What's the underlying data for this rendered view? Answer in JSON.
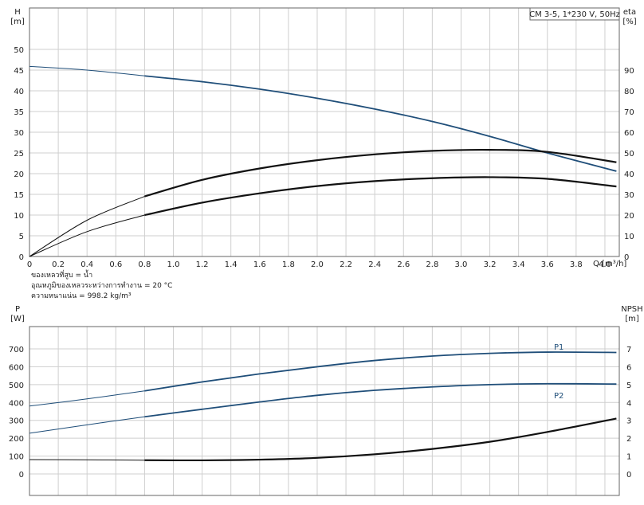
{
  "chart_data": [
    {
      "type": "line",
      "title": "CM 3-5, 1*230 V, 50Hz",
      "xlabel": "Q [m³/h]",
      "x_unit_label": "Q [m³/h]",
      "ylabel_left": "H",
      "ylabel_left_unit": "[m]",
      "ylabel_right": "eta",
      "ylabel_right_unit": "[%]",
      "xlim": [
        0,
        4.1
      ],
      "ylim_left": [
        0,
        50
      ],
      "ylim_right": [
        0,
        100
      ],
      "x_ticks": [
        "0",
        "0.2",
        "0.4",
        "0.6",
        "0.8",
        "1.0",
        "1.2",
        "1.4",
        "1.6",
        "1.8",
        "2.0",
        "2.2",
        "2.4",
        "2.6",
        "2.8",
        "3.0",
        "3.2",
        "3.4",
        "3.6",
        "3.8",
        "4.0"
      ],
      "y_left_ticks": [
        "0",
        "5",
        "10",
        "15",
        "20",
        "25",
        "30",
        "35",
        "40",
        "45",
        "50"
      ],
      "y_right_ticks": [
        "0",
        "10",
        "20",
        "30",
        "40",
        "50",
        "60",
        "70",
        "80",
        "90"
      ],
      "grid": true,
      "series": [
        {
          "axis": "left",
          "color": "#1f4e79",
          "points": [
            [
              0,
              45.9
            ],
            [
              0.4,
              45.0
            ],
            [
              0.8,
              43.6
            ],
            [
              1.2,
              42.2
            ],
            [
              1.6,
              40.4
            ],
            [
              2.0,
              38.2
            ],
            [
              2.4,
              35.6
            ],
            [
              2.8,
              32.6
            ],
            [
              3.2,
              29.0
            ],
            [
              3.6,
              25.0
            ],
            [
              4.08,
              20.6
            ]
          ]
        },
        {
          "axis": "right",
          "color": "#111111",
          "points": [
            [
              0,
              0
            ],
            [
              0.4,
              17.5
            ],
            [
              0.8,
              29.0
            ],
            [
              1.2,
              37.0
            ],
            [
              1.6,
              42.5
            ],
            [
              2.0,
              46.5
            ],
            [
              2.4,
              49.3
            ],
            [
              2.8,
              51.0
            ],
            [
              3.2,
              51.5
            ],
            [
              3.6,
              50.5
            ],
            [
              4.08,
              45.5
            ]
          ]
        },
        {
          "axis": "right",
          "color": "#111111",
          "points": [
            [
              0,
              0
            ],
            [
              0.4,
              12.0
            ],
            [
              0.8,
              20.0
            ],
            [
              1.2,
              26.0
            ],
            [
              1.6,
              30.5
            ],
            [
              2.0,
              34.0
            ],
            [
              2.4,
              36.4
            ],
            [
              2.8,
              37.8
            ],
            [
              3.2,
              38.3
            ],
            [
              3.6,
              37.5
            ],
            [
              4.08,
              33.8
            ]
          ]
        }
      ],
      "notes": [
        "ของเหลวที่สูบ = น้ำ",
        "อุณหภูมิของเหลวระหว่างการทำงาน = 20 °C",
        "ความหนาแน่น = 998.2 kg/m³"
      ]
    },
    {
      "type": "line",
      "ylabel_left": "P",
      "ylabel_left_unit": "[W]",
      "ylabel_right": "NPSH",
      "ylabel_right_unit": "[m]",
      "xlim": [
        0,
        4.1
      ],
      "ylim_left": [
        0,
        700
      ],
      "ylim_right": [
        0,
        7
      ],
      "y_left_ticks": [
        "0",
        "100",
        "200",
        "300",
        "400",
        "500",
        "600",
        "700"
      ],
      "y_right_ticks": [
        "0",
        "1",
        "2",
        "3",
        "4",
        "5",
        "6",
        "7"
      ],
      "grid": true,
      "series": [
        {
          "name": "P1",
          "axis": "left",
          "color": "#1f4e79",
          "points": [
            [
              0,
              380
            ],
            [
              0.4,
              420
            ],
            [
              0.8,
              465
            ],
            [
              1.2,
              515
            ],
            [
              1.6,
              560
            ],
            [
              2.0,
              600
            ],
            [
              2.4,
              635
            ],
            [
              2.8,
              660
            ],
            [
              3.2,
              675
            ],
            [
              3.6,
              682
            ],
            [
              4.08,
              680
            ]
          ]
        },
        {
          "name": "P2",
          "axis": "left",
          "color": "#1f4e79",
          "points": [
            [
              0,
              228
            ],
            [
              0.4,
              275
            ],
            [
              0.8,
              320
            ],
            [
              1.2,
              362
            ],
            [
              1.6,
              403
            ],
            [
              2.0,
              440
            ],
            [
              2.4,
              468
            ],
            [
              2.8,
              487
            ],
            [
              3.2,
              500
            ],
            [
              3.6,
              505
            ],
            [
              4.08,
              503
            ]
          ]
        },
        {
          "axis": "right",
          "color": "#111111",
          "points": [
            [
              0,
              0.8
            ],
            [
              0.4,
              0.79
            ],
            [
              0.8,
              0.77
            ],
            [
              1.2,
              0.76
            ],
            [
              1.6,
              0.8
            ],
            [
              2.0,
              0.9
            ],
            [
              2.4,
              1.1
            ],
            [
              2.8,
              1.4
            ],
            [
              3.2,
              1.8
            ],
            [
              3.6,
              2.35
            ],
            [
              4.08,
              3.1
            ]
          ]
        }
      ]
    }
  ]
}
